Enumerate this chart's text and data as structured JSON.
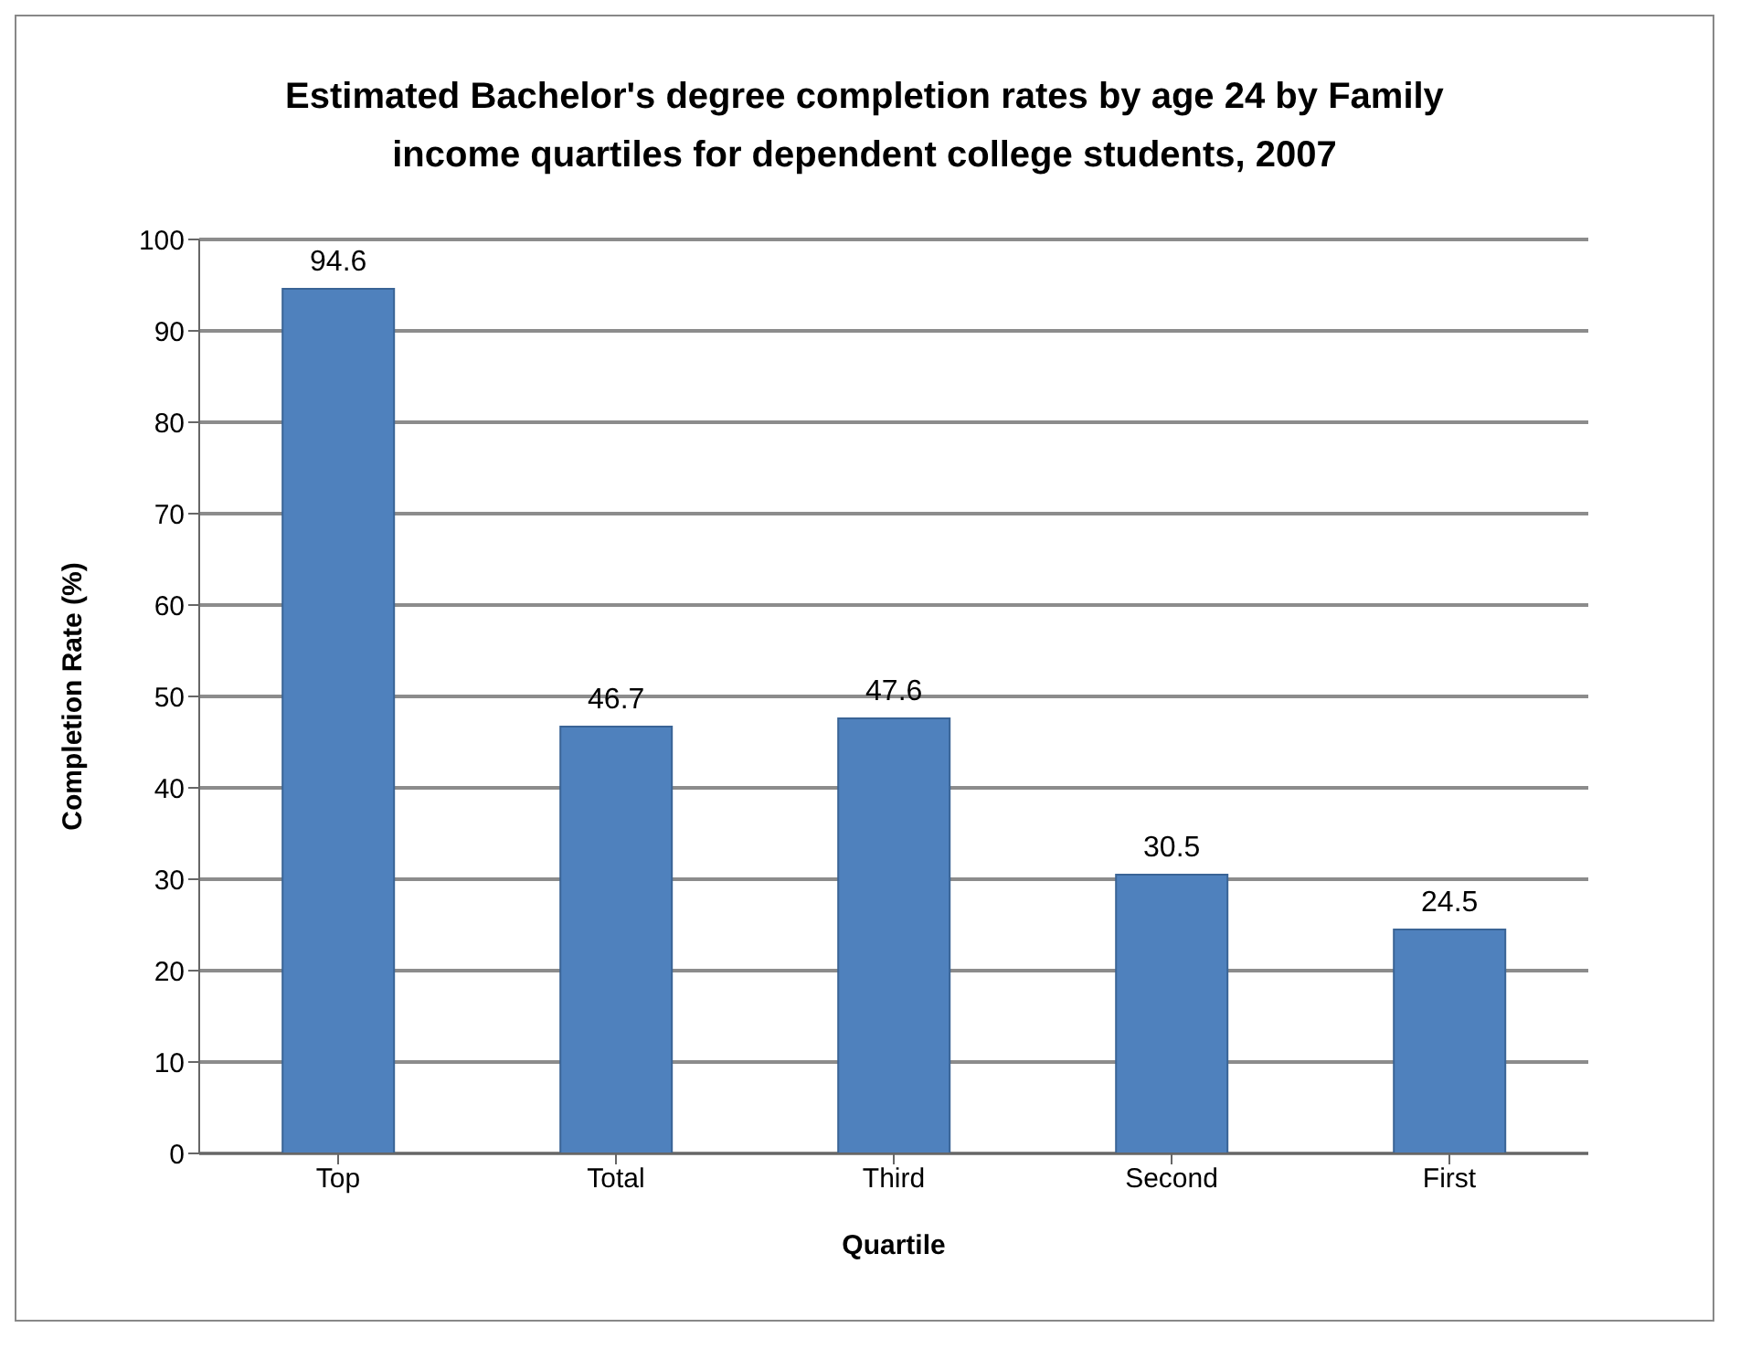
{
  "chart_data": {
    "type": "bar",
    "title": "Estimated Bachelor's degree completion rates by age 24 by Family income quartiles for dependent college students, 2007",
    "xlabel": "Quartile",
    "ylabel": "Completion Rate  (%)",
    "categories": [
      "Top",
      "Total",
      "Third",
      "Second",
      "First"
    ],
    "values": [
      94.6,
      46.7,
      47.6,
      30.5,
      24.5
    ],
    "color": "#4f81bd",
    "ylim": [
      0,
      100
    ],
    "yticks": [
      0,
      10,
      20,
      30,
      40,
      50,
      60,
      70,
      80,
      90,
      100
    ],
    "grid": "y",
    "data_labels": true
  }
}
